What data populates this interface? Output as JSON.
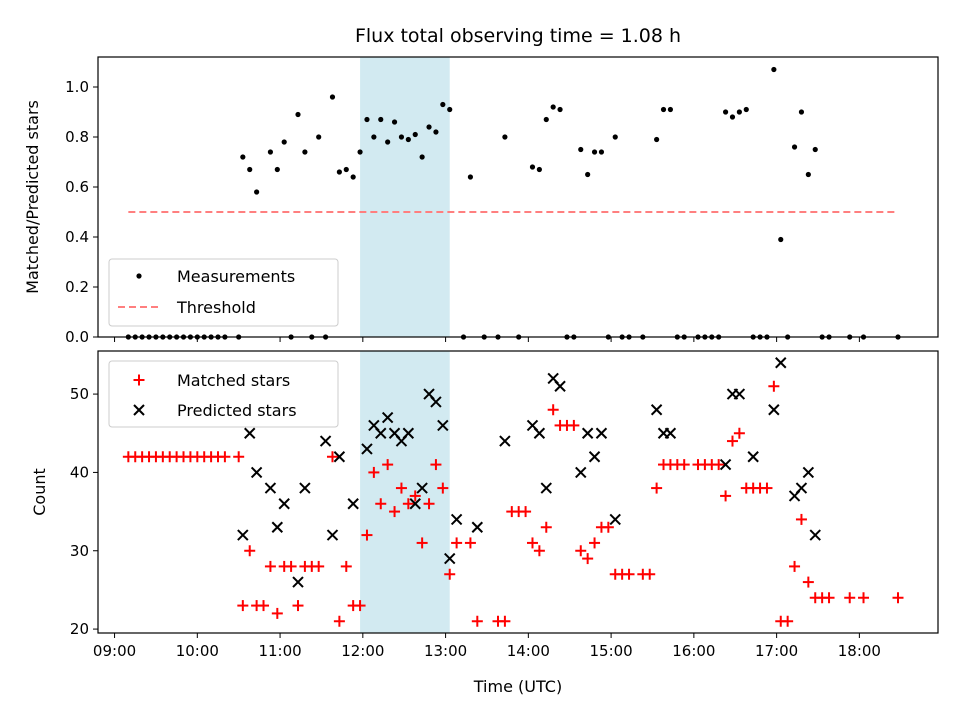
{
  "chart_data": [
    {
      "type": "scatter",
      "title": "Flux total observing time = 1.08 h",
      "xlabel": "",
      "ylabel": "Matched/Predicted stars",
      "xlim": [
        "08:48",
        "18:57"
      ],
      "ylim": [
        0,
        1.12
      ],
      "yticks": [
        "0.0",
        "0.2",
        "0.4",
        "0.6",
        "0.8",
        "1.0"
      ],
      "highlight_span": {
        "start": "11:58",
        "end": "13:03",
        "color": "#add8e6"
      },
      "legend": {
        "position": "lower-left",
        "entries": [
          "Measurements",
          "Threshold"
        ]
      },
      "series": [
        {
          "name": "Measurements",
          "marker": "dot",
          "color": "#000000",
          "points": [
            [
              "09:10",
              0
            ],
            [
              "09:15",
              0
            ],
            [
              "09:20",
              0
            ],
            [
              "09:25",
              0
            ],
            [
              "09:30",
              0
            ],
            [
              "09:35",
              0
            ],
            [
              "09:40",
              0
            ],
            [
              "09:45",
              0
            ],
            [
              "09:50",
              0
            ],
            [
              "09:55",
              0
            ],
            [
              "10:00",
              0
            ],
            [
              "10:05",
              0
            ],
            [
              "10:10",
              0
            ],
            [
              "10:15",
              0
            ],
            [
              "10:20",
              0
            ],
            [
              "10:30",
              0
            ],
            [
              "10:33",
              0.72
            ],
            [
              "10:38",
              0.67
            ],
            [
              "10:43",
              0.58
            ],
            [
              "10:53",
              0.74
            ],
            [
              "10:58",
              0.67
            ],
            [
              "11:03",
              0.78
            ],
            [
              "11:13",
              0.89
            ],
            [
              "11:18",
              0.74
            ],
            [
              "11:28",
              0.8
            ],
            [
              "11:38",
              0.96
            ],
            [
              "11:43",
              0.66
            ],
            [
              "11:48",
              0.67
            ],
            [
              "11:53",
              0.64
            ],
            [
              "11:08",
              0
            ],
            [
              "11:23",
              0
            ],
            [
              "11:33",
              0
            ],
            [
              "11:58",
              0.74
            ],
            [
              "12:03",
              0.87
            ],
            [
              "12:08",
              0.8
            ],
            [
              "12:13",
              0.87
            ],
            [
              "12:18",
              0.78
            ],
            [
              "12:23",
              0.86
            ],
            [
              "12:28",
              0.8
            ],
            [
              "12:33",
              0.79
            ],
            [
              "12:38",
              0.81
            ],
            [
              "12:43",
              0.72
            ],
            [
              "12:48",
              0.84
            ],
            [
              "12:53",
              0.82
            ],
            [
              "12:58",
              0.93
            ],
            [
              "13:03",
              0.91
            ],
            [
              "13:13",
              0
            ],
            [
              "13:18",
              0.64
            ],
            [
              "13:28",
              0
            ],
            [
              "13:38",
              0
            ],
            [
              "13:43",
              0.8
            ],
            [
              "13:53",
              0
            ],
            [
              "14:03",
              0.68
            ],
            [
              "14:08",
              0.67
            ],
            [
              "14:13",
              0.87
            ],
            [
              "14:18",
              0.92
            ],
            [
              "14:23",
              0.91
            ],
            [
              "14:28",
              0
            ],
            [
              "14:33",
              0
            ],
            [
              "14:38",
              0.75
            ],
            [
              "14:43",
              0.65
            ],
            [
              "14:48",
              0.74
            ],
            [
              "14:53",
              0.74
            ],
            [
              "14:58",
              0
            ],
            [
              "15:03",
              0.8
            ],
            [
              "15:08",
              0
            ],
            [
              "15:13",
              0
            ],
            [
              "15:23",
              0
            ],
            [
              "15:33",
              0.79
            ],
            [
              "15:38",
              0.91
            ],
            [
              "15:43",
              0.91
            ],
            [
              "15:48",
              0
            ],
            [
              "15:53",
              0
            ],
            [
              "16:03",
              0
            ],
            [
              "16:08",
              0
            ],
            [
              "16:13",
              0
            ],
            [
              "16:18",
              0
            ],
            [
              "16:23",
              0.9
            ],
            [
              "16:28",
              0.88
            ],
            [
              "16:33",
              0.9
            ],
            [
              "16:38",
              0.91
            ],
            [
              "16:43",
              0
            ],
            [
              "16:48",
              0
            ],
            [
              "16:53",
              0
            ],
            [
              "16:58",
              1.07
            ],
            [
              "17:03",
              0.39
            ],
            [
              "17:08",
              0
            ],
            [
              "17:13",
              0.76
            ],
            [
              "17:18",
              0.9
            ],
            [
              "17:23",
              0.65
            ],
            [
              "17:28",
              0.75
            ],
            [
              "17:33",
              0
            ],
            [
              "17:38",
              0
            ],
            [
              "17:53",
              0
            ],
            [
              "18:03",
              0
            ],
            [
              "18:28",
              0
            ]
          ]
        },
        {
          "name": "Threshold",
          "marker": "dashed-line",
          "color": "#ff7f7f",
          "points": [
            [
              "09:10",
              0.5
            ],
            [
              "18:28",
              0.5
            ]
          ]
        }
      ]
    },
    {
      "type": "scatter",
      "title": "",
      "xlabel": "Time (UTC)",
      "ylabel": "Count",
      "xlim": [
        "08:48",
        "18:57"
      ],
      "ylim": [
        19.5,
        55.5
      ],
      "yticks": [
        "20",
        "30",
        "40",
        "50"
      ],
      "xticks": [
        "09:00",
        "10:00",
        "11:00",
        "12:00",
        "13:00",
        "14:00",
        "15:00",
        "16:00",
        "17:00",
        "18:00"
      ],
      "highlight_span": {
        "start": "11:58",
        "end": "13:03",
        "color": "#add8e6"
      },
      "legend": {
        "position": "top-left",
        "entries": [
          "Matched stars",
          "Predicted stars"
        ]
      },
      "series": [
        {
          "name": "Matched stars",
          "marker": "plus",
          "color": "#ff0000",
          "points": [
            [
              "09:10",
              42
            ],
            [
              "09:15",
              42
            ],
            [
              "09:20",
              42
            ],
            [
              "09:25",
              42
            ],
            [
              "09:30",
              42
            ],
            [
              "09:35",
              42
            ],
            [
              "09:40",
              42
            ],
            [
              "09:45",
              42
            ],
            [
              "09:50",
              42
            ],
            [
              "09:55",
              42
            ],
            [
              "10:00",
              42
            ],
            [
              "10:05",
              42
            ],
            [
              "10:10",
              42
            ],
            [
              "10:15",
              42
            ],
            [
              "10:20",
              42
            ],
            [
              "10:30",
              42
            ],
            [
              "10:33",
              23
            ],
            [
              "10:38",
              30
            ],
            [
              "10:43",
              23
            ],
            [
              "10:48",
              23
            ],
            [
              "10:53",
              28
            ],
            [
              "10:58",
              22
            ],
            [
              "11:03",
              28
            ],
            [
              "11:08",
              28
            ],
            [
              "11:13",
              23
            ],
            [
              "11:18",
              28
            ],
            [
              "11:23",
              28
            ],
            [
              "11:28",
              28
            ],
            [
              "11:38",
              42
            ],
            [
              "11:43",
              21
            ],
            [
              "11:48",
              28
            ],
            [
              "11:53",
              23
            ],
            [
              "11:58",
              23
            ],
            [
              "12:03",
              32
            ],
            [
              "12:08",
              40
            ],
            [
              "12:13",
              36
            ],
            [
              "12:18",
              41
            ],
            [
              "12:23",
              35
            ],
            [
              "12:28",
              38
            ],
            [
              "12:33",
              36
            ],
            [
              "12:38",
              37
            ],
            [
              "12:43",
              31
            ],
            [
              "12:48",
              36
            ],
            [
              "12:53",
              41
            ],
            [
              "12:58",
              38
            ],
            [
              "13:03",
              27
            ],
            [
              "13:08",
              31
            ],
            [
              "13:18",
              31
            ],
            [
              "13:23",
              21
            ],
            [
              "13:38",
              21
            ],
            [
              "13:43",
              21
            ],
            [
              "13:48",
              35
            ],
            [
              "13:53",
              35
            ],
            [
              "13:58",
              35
            ],
            [
              "14:03",
              31
            ],
            [
              "14:08",
              30
            ],
            [
              "14:13",
              33
            ],
            [
              "14:18",
              48
            ],
            [
              "14:23",
              46
            ],
            [
              "14:28",
              46
            ],
            [
              "14:33",
              46
            ],
            [
              "14:38",
              30
            ],
            [
              "14:43",
              29
            ],
            [
              "14:48",
              31
            ],
            [
              "14:53",
              33
            ],
            [
              "14:58",
              33
            ],
            [
              "15:03",
              27
            ],
            [
              "15:08",
              27
            ],
            [
              "15:13",
              27
            ],
            [
              "15:23",
              27
            ],
            [
              "15:28",
              27
            ],
            [
              "15:33",
              38
            ],
            [
              "15:38",
              41
            ],
            [
              "15:43",
              41
            ],
            [
              "15:48",
              41
            ],
            [
              "15:53",
              41
            ],
            [
              "16:03",
              41
            ],
            [
              "16:08",
              41
            ],
            [
              "16:13",
              41
            ],
            [
              "16:18",
              41
            ],
            [
              "16:23",
              37
            ],
            [
              "16:28",
              44
            ],
            [
              "16:33",
              45
            ],
            [
              "16:38",
              38
            ],
            [
              "16:43",
              38
            ],
            [
              "16:48",
              38
            ],
            [
              "16:53",
              38
            ],
            [
              "16:58",
              51
            ],
            [
              "17:03",
              21
            ],
            [
              "17:08",
              21
            ],
            [
              "17:13",
              28
            ],
            [
              "17:18",
              34
            ],
            [
              "17:23",
              26
            ],
            [
              "17:28",
              24
            ],
            [
              "17:33",
              24
            ],
            [
              "17:38",
              24
            ],
            [
              "17:53",
              24
            ],
            [
              "18:03",
              24
            ],
            [
              "18:28",
              24
            ]
          ]
        },
        {
          "name": "Predicted stars",
          "marker": "x",
          "color": "#000000",
          "points": [
            [
              "10:33",
              32
            ],
            [
              "10:38",
              45
            ],
            [
              "10:43",
              40
            ],
            [
              "10:53",
              38
            ],
            [
              "10:58",
              33
            ],
            [
              "11:03",
              36
            ],
            [
              "11:13",
              26
            ],
            [
              "11:18",
              38
            ],
            [
              "11:33",
              44
            ],
            [
              "11:38",
              32
            ],
            [
              "11:43",
              42
            ],
            [
              "11:53",
              36
            ],
            [
              "12:03",
              43
            ],
            [
              "12:08",
              46
            ],
            [
              "12:13",
              45
            ],
            [
              "12:18",
              47
            ],
            [
              "12:23",
              45
            ],
            [
              "12:28",
              44
            ],
            [
              "12:33",
              45
            ],
            [
              "12:38",
              36
            ],
            [
              "12:43",
              38
            ],
            [
              "12:48",
              50
            ],
            [
              "12:53",
              49
            ],
            [
              "12:58",
              46
            ],
            [
              "13:03",
              29
            ],
            [
              "13:08",
              34
            ],
            [
              "13:23",
              33
            ],
            [
              "13:43",
              44
            ],
            [
              "14:03",
              46
            ],
            [
              "14:08",
              45
            ],
            [
              "14:13",
              38
            ],
            [
              "14:18",
              52
            ],
            [
              "14:23",
              51
            ],
            [
              "14:38",
              40
            ],
            [
              "14:43",
              45
            ],
            [
              "14:48",
              42
            ],
            [
              "14:53",
              45
            ],
            [
              "15:03",
              34
            ],
            [
              "15:33",
              48
            ],
            [
              "15:38",
              45
            ],
            [
              "15:43",
              45
            ],
            [
              "16:23",
              41
            ],
            [
              "16:28",
              50
            ],
            [
              "16:33",
              50
            ],
            [
              "16:43",
              42
            ],
            [
              "16:58",
              48
            ],
            [
              "17:03",
              54
            ],
            [
              "17:13",
              37
            ],
            [
              "17:18",
              38
            ],
            [
              "17:23",
              40
            ],
            [
              "17:28",
              32
            ]
          ]
        }
      ]
    }
  ]
}
